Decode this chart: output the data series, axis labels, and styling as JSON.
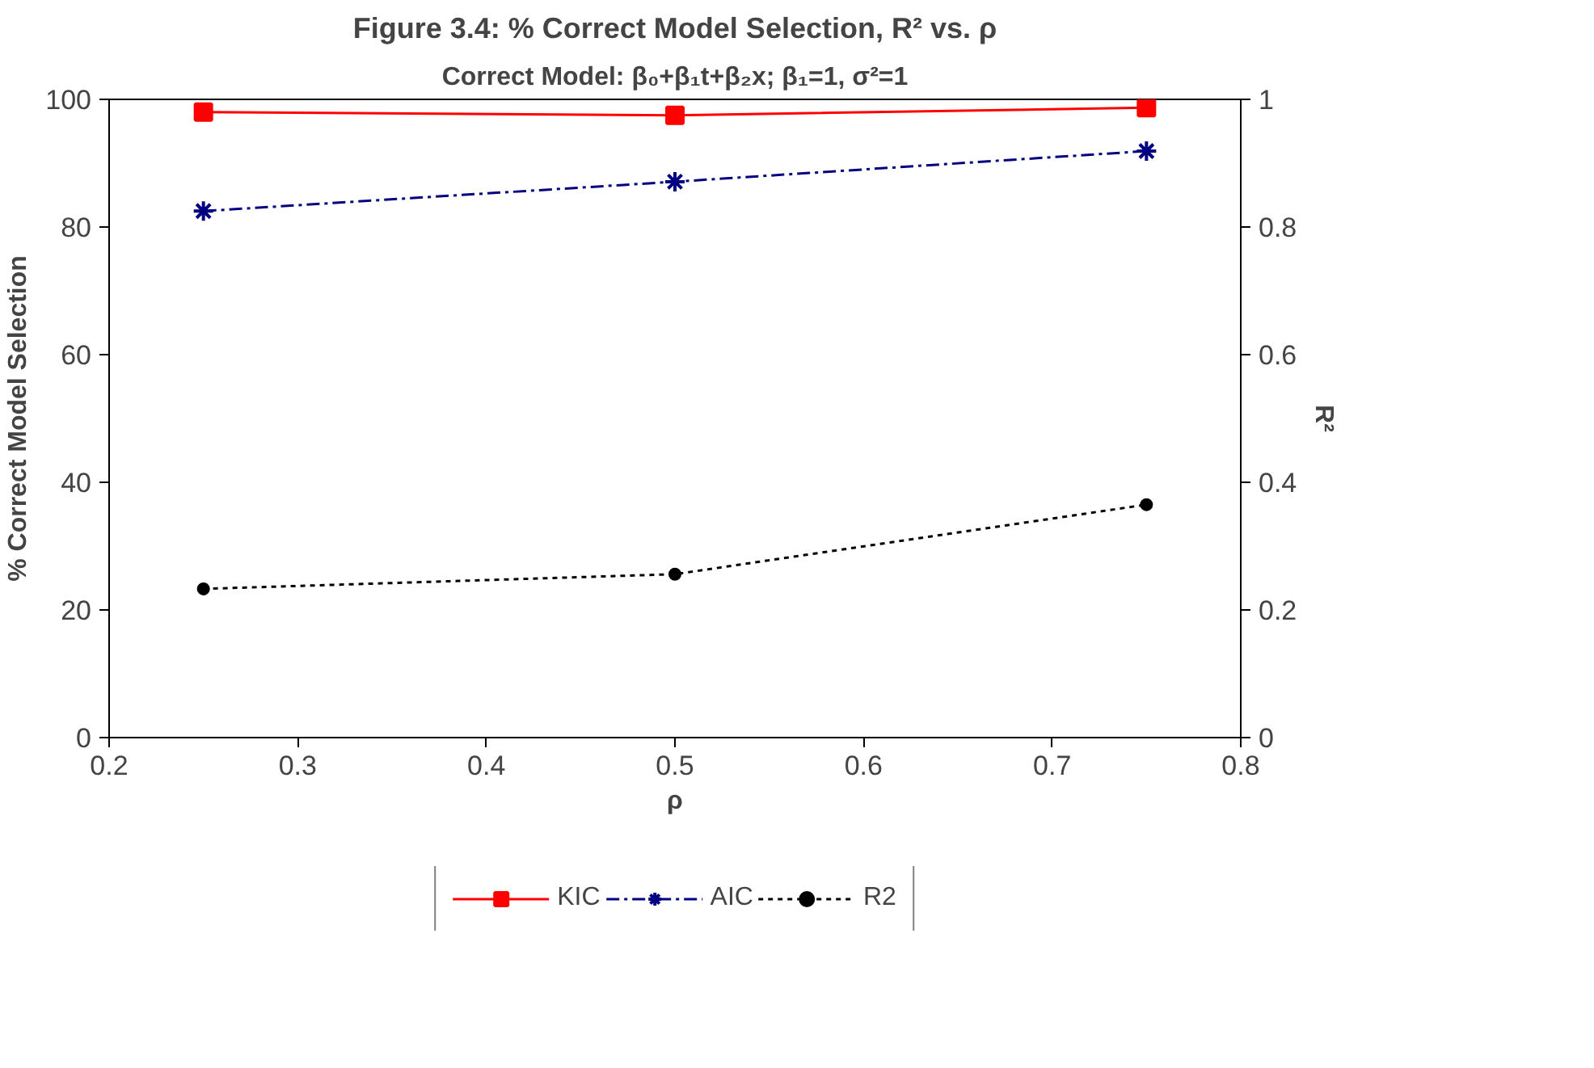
{
  "chart_data": {
    "type": "line",
    "title": "Figure 3.4: % Correct Model Selection, R² vs. ρ",
    "subtitle": "Correct Model: β₀+β₁t+β₂x; β₁=1, σ²=1",
    "xlabel": "ρ",
    "ylabel": "% Correct Model Selection",
    "y2label": "R²",
    "x": [
      0.25,
      0.5,
      0.75
    ],
    "series": [
      {
        "name": "KIC",
        "color": "#ff0000",
        "values": [
          98.0,
          97.5,
          98.7
        ],
        "marker": "square",
        "line_style": "solid"
      },
      {
        "name": "AIC",
        "color": "#000080",
        "values": [
          82.5,
          87.1,
          91.9
        ],
        "marker": "cross",
        "line_style": "dashed"
      },
      {
        "name": "R2",
        "color": "#000000",
        "values": [
          0.233,
          0.256,
          0.365
        ],
        "marker": "circle",
        "line_style": "dotted",
        "axis": "y2"
      }
    ],
    "xlim": [
      0.2,
      0.8
    ],
    "xticks": [
      0.2,
      0.3,
      0.4,
      0.5,
      0.6,
      0.7,
      0.8
    ],
    "ylim": [
      0,
      100
    ],
    "yticks": [
      0,
      20,
      40,
      60,
      80,
      100
    ],
    "y2lim": [
      0,
      1
    ],
    "y2ticks": [
      0,
      0.2,
      0.4,
      0.6,
      0.8,
      1
    ],
    "grid": false,
    "legend": "bottom"
  }
}
